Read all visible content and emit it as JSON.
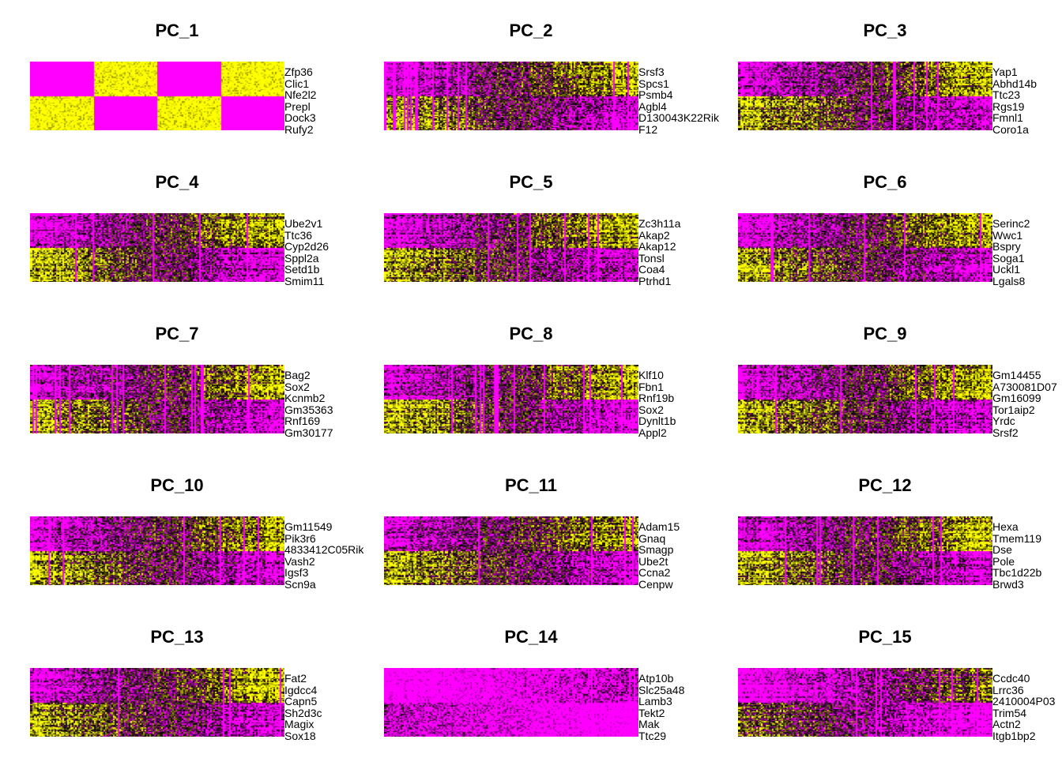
{
  "chart_data": [
    {
      "type": "heatmap",
      "title": "PC_1",
      "genes": [
        "Zfp36",
        "Clic1",
        "Nfe2l2",
        "Prepl",
        "Dock3",
        "Rufy2"
      ]
    },
    {
      "type": "heatmap",
      "title": "PC_2",
      "genes": [
        "Srsf3",
        "Spcs1",
        "Psmb4",
        "Agbl4",
        "D130043K22Rik",
        "F12"
      ]
    },
    {
      "type": "heatmap",
      "title": "PC_3",
      "genes": [
        "Yap1",
        "Abhd14b",
        "Ttc23",
        "Rgs19",
        "Fmnl1",
        "Coro1a"
      ]
    },
    {
      "type": "heatmap",
      "title": "PC_4",
      "genes": [
        "Ube2v1",
        "Ttc36",
        "Cyp2d26",
        "Sppl2a",
        "Setd1b",
        "Smim11"
      ]
    },
    {
      "type": "heatmap",
      "title": "PC_5",
      "genes": [
        "Zc3h11a",
        "Akap2",
        "Akap12",
        "Tonsl",
        "Coa4",
        "Ptrhd1"
      ]
    },
    {
      "type": "heatmap",
      "title": "PC_6",
      "genes": [
        "Serinc2",
        "Wwc1",
        "Bspry",
        "Soga1",
        "Uckl1",
        "Lgals8"
      ]
    },
    {
      "type": "heatmap",
      "title": "PC_7",
      "genes": [
        "Bag2",
        "Sox2",
        "Kcnmb2",
        "Gm35363",
        "Rnf169",
        "Gm30177"
      ]
    },
    {
      "type": "heatmap",
      "title": "PC_8",
      "genes": [
        "Klf10",
        "Fbn1",
        "Rnf19b",
        "Sox2",
        "Dynlt1b",
        "Appl2"
      ]
    },
    {
      "type": "heatmap",
      "title": "PC_9",
      "genes": [
        "Gm14455",
        "A730081D07",
        "Gm16099",
        "Tor1aip2",
        "Yrdc",
        "Srsf2"
      ]
    },
    {
      "type": "heatmap",
      "title": "PC_10",
      "genes": [
        "Gm11549",
        "Pik3r6",
        "4833412C05Rik",
        "Vash2",
        "Igsf3",
        "Scn9a"
      ]
    },
    {
      "type": "heatmap",
      "title": "PC_11",
      "genes": [
        "Adam15",
        "Gnaq",
        "Smagp",
        "Ube2t",
        "Ccna2",
        "Cenpw"
      ]
    },
    {
      "type": "heatmap",
      "title": "PC_12",
      "genes": [
        "Hexa",
        "Tmem119",
        "Dse",
        "Pole",
        "Tbc1d22b",
        "Brwd3"
      ]
    },
    {
      "type": "heatmap",
      "title": "PC_13",
      "genes": [
        "Fat2",
        "Igdcc4",
        "Capn5",
        "Sh2d3c",
        "Magix",
        "Sox18"
      ]
    },
    {
      "type": "heatmap",
      "title": "PC_14",
      "genes": [
        "Atp10b",
        "Slc25a48",
        "Lamb3",
        "Tekt2",
        "Mak",
        "Ttc29"
      ]
    },
    {
      "type": "heatmap",
      "title": "PC_15",
      "genes": [
        "Ccdc40",
        "Lrrc36",
        "2410004P03",
        "Trim54",
        "Actn2",
        "Itgb1bp2"
      ]
    }
  ],
  "colors": {
    "low": "#ff00ff",
    "mid": "#000000",
    "high": "#ffff00"
  }
}
